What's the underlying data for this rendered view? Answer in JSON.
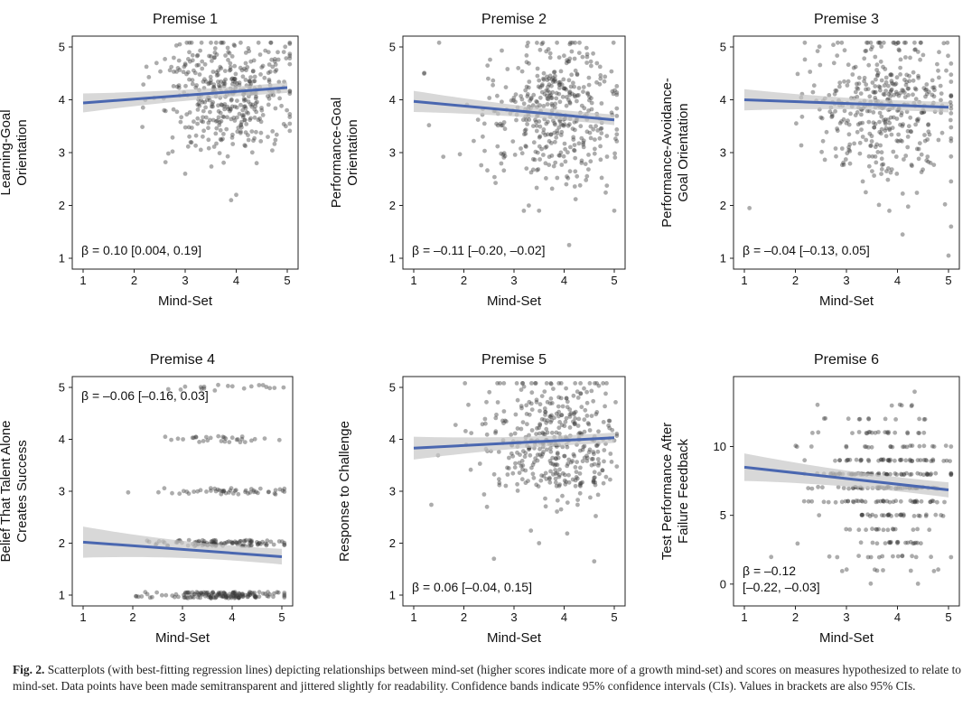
{
  "caption": {
    "label": "Fig. 2.",
    "text": "Scatterplots (with best-fitting regression lines) depicting relationships between mind-set (higher scores indicate more of a growth mind-set) and scores on measures hypothesized to relate to mind-set. Data points have been made semitransparent and jittered slightly for readability. Confidence bands indicate 95% confidence intervals (CIs). Values in brackets are also 95% CIs."
  },
  "colors": {
    "regression_line": "#4a67b0",
    "confidence_band": "#c8c8c8",
    "points": "#3a3a3a"
  },
  "chart_data": [
    {
      "type": "scatter",
      "title": "Premise 1",
      "xlabel": "Mind-Set",
      "ylabel": [
        "Learning-Goal",
        "Orientation"
      ],
      "xlim": [
        1,
        5
      ],
      "ylim": [
        1,
        5
      ],
      "xticks": [
        1,
        2,
        3,
        4,
        5
      ],
      "yticks": [
        1,
        2,
        3,
        4,
        5
      ],
      "discrete_y": false,
      "cloud_center_y": 4.1,
      "cloud_spread_y": 0.55,
      "outliers": [
        [
          3.9,
          2.1
        ],
        [
          4.0,
          2.2
        ],
        [
          3.0,
          2.6
        ],
        [
          4.4,
          2.8
        ]
      ],
      "regression": {
        "x": [
          1,
          5
        ],
        "y": [
          3.94,
          4.23
        ],
        "ci_halfwidth": [
          0.18,
          0.1
        ]
      },
      "annotation": [
        "β = 0.10 [0.004, 0.19]"
      ],
      "annotation_position": "bottom-left"
    },
    {
      "type": "scatter",
      "title": "Premise 2",
      "xlabel": "Mind-Set",
      "ylabel": [
        "Performance-Goal",
        "Orientation"
      ],
      "xlim": [
        1,
        5
      ],
      "ylim": [
        1,
        5
      ],
      "xticks": [
        1,
        2,
        3,
        4,
        5
      ],
      "yticks": [
        1,
        2,
        3,
        4,
        5
      ],
      "discrete_y": false,
      "cloud_center_y": 3.75,
      "cloud_spread_y": 0.7,
      "outliers": [
        [
          4.1,
          1.25
        ],
        [
          3.5,
          1.9
        ],
        [
          5.0,
          1.9
        ]
      ],
      "regression": {
        "x": [
          1,
          5
        ],
        "y": [
          3.97,
          3.62
        ],
        "ci_halfwidth": [
          0.2,
          0.1
        ]
      },
      "annotation": [
        "β = –0.11 [–0.20, –0.02]"
      ],
      "annotation_position": "bottom-left"
    },
    {
      "type": "scatter",
      "title": "Premise 3",
      "xlabel": "Mind-Set",
      "ylabel": [
        "Performance-Avoidance-",
        "Goal Orientation"
      ],
      "xlim": [
        1,
        5
      ],
      "ylim": [
        1,
        5
      ],
      "xticks": [
        1,
        2,
        3,
        4,
        5
      ],
      "yticks": [
        1,
        2,
        3,
        4,
        5
      ],
      "discrete_y": false,
      "cloud_center_y": 3.9,
      "cloud_spread_y": 0.75,
      "outliers": [
        [
          1.1,
          1.95
        ],
        [
          5.0,
          1.05
        ],
        [
          5.05,
          1.6
        ],
        [
          4.1,
          1.45
        ]
      ],
      "regression": {
        "x": [
          1,
          5
        ],
        "y": [
          4.0,
          3.86
        ],
        "ci_halfwidth": [
          0.2,
          0.1
        ]
      },
      "annotation": [
        "β = –0.04 [–0.13, 0.05]"
      ],
      "annotation_position": "bottom-left"
    },
    {
      "type": "scatter",
      "title": "Premise 4",
      "xlabel": "Mind-Set",
      "ylabel": [
        "Belief That Talent Alone",
        "Creates Success"
      ],
      "xlim": [
        1,
        5
      ],
      "ylim": [
        1,
        5
      ],
      "xticks": [
        1,
        2,
        3,
        4,
        5
      ],
      "yticks": [
        1,
        2,
        3,
        4,
        5
      ],
      "discrete_y": true,
      "levels": [
        1,
        2,
        3,
        4,
        5
      ],
      "level_weights": [
        0.45,
        0.3,
        0.13,
        0.08,
        0.04
      ],
      "outliers": [],
      "regression": {
        "x": [
          1,
          5
        ],
        "y": [
          2.02,
          1.74
        ],
        "ci_halfwidth": [
          0.3,
          0.15
        ]
      },
      "annotation": [
        "β = –0.06 [–0.16, 0.03]"
      ],
      "annotation_position": "top-left"
    },
    {
      "type": "scatter",
      "title": "Premise 5",
      "xlabel": "Mind-Set",
      "ylabel": [
        "Response to Challenge"
      ],
      "xlim": [
        1,
        5
      ],
      "ylim": [
        1,
        5
      ],
      "xticks": [
        1,
        2,
        3,
        4,
        5
      ],
      "yticks": [
        1,
        2,
        3,
        4,
        5
      ],
      "discrete_y": false,
      "cloud_center_y": 3.95,
      "cloud_spread_y": 0.6,
      "outliers": [
        [
          2.6,
          1.7
        ],
        [
          4.6,
          1.65
        ],
        [
          3.5,
          2.0
        ]
      ],
      "regression": {
        "x": [
          1,
          5
        ],
        "y": [
          3.83,
          4.03
        ],
        "ci_halfwidth": [
          0.22,
          0.1
        ]
      },
      "annotation": [
        "β = 0.06 [–0.04, 0.15]"
      ],
      "annotation_position": "bottom-left"
    },
    {
      "type": "scatter",
      "title": "Premise 6",
      "xlabel": "Mind-Set",
      "ylabel": [
        "Test Performance After",
        "Failure Feedback"
      ],
      "xlim": [
        1,
        5
      ],
      "ylim": [
        -0.8,
        14.3
      ],
      "xticks": [
        1,
        2,
        3,
        4,
        5
      ],
      "yticks": [
        0,
        5,
        10
      ],
      "discrete_y": true,
      "levels": [
        0,
        1,
        2,
        3,
        4,
        5,
        6,
        7,
        8,
        9,
        10,
        11,
        12,
        13,
        14
      ],
      "level_weights": [
        0.01,
        0.02,
        0.04,
        0.06,
        0.06,
        0.1,
        0.12,
        0.14,
        0.14,
        0.12,
        0.08,
        0.05,
        0.03,
        0.015,
        0.005
      ],
      "outliers": [],
      "regression": {
        "x": [
          1,
          5
        ],
        "y": [
          8.5,
          6.85
        ],
        "ci_halfwidth": [
          1.0,
          0.55
        ]
      },
      "annotation": [
        "β = –0.12",
        "[–0.22, –0.03]"
      ],
      "annotation_position": "bottom-left"
    }
  ]
}
